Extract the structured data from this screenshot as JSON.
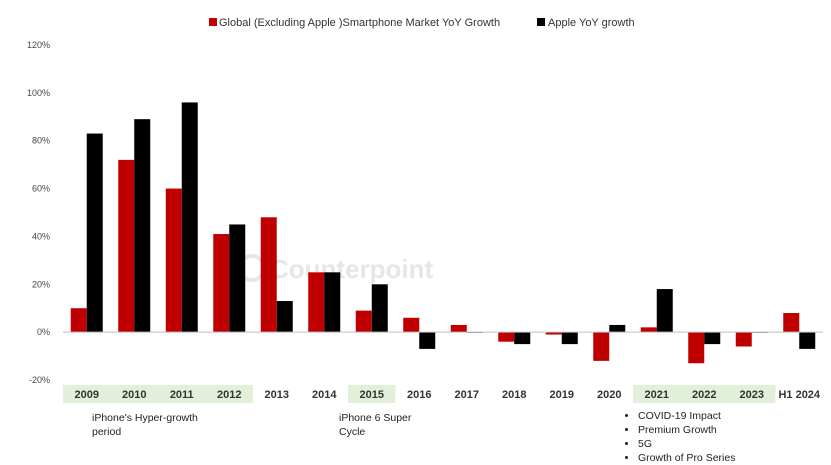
{
  "chart_data": {
    "type": "bar",
    "categories": [
      "2009",
      "2010",
      "2011",
      "2012",
      "2013",
      "2014",
      "2015",
      "2016",
      "2017",
      "2018",
      "2019",
      "2020",
      "2021",
      "2022",
      "2023",
      "H1 2024"
    ],
    "highlighted_categories": [
      "2009",
      "2010",
      "2011",
      "2012",
      "2015",
      "2021",
      "2022",
      "2023"
    ],
    "series": [
      {
        "name": "Global (Excluding Apple )Smartphone Market YoY Growth",
        "color": "#c00000",
        "values": [
          10,
          72,
          60,
          41,
          48,
          25,
          9,
          6,
          3,
          -4,
          -1,
          -12,
          2,
          -13,
          -6,
          8
        ]
      },
      {
        "name": "Apple YoY growth",
        "color": "#000000",
        "values": [
          83,
          89,
          96,
          45,
          13,
          25,
          20,
          -7,
          0,
          -5,
          -5,
          3,
          18,
          -5,
          0,
          -7
        ]
      }
    ],
    "yticks": [
      "120%",
      "100%",
      "80%",
      "60%",
      "40%",
      "20%",
      "0%",
      "-20%"
    ],
    "ylim": [
      -20,
      120
    ],
    "legend": "top-center",
    "grid": false,
    "annotations": [
      {
        "text": "iPhone's Hyper-growth period"
      },
      {
        "text": "iPhone 6 Super Cycle"
      },
      {
        "items": [
          "COVID-19 Impact",
          "Premium Growth",
          "5G",
          "Growth of Pro Series"
        ]
      }
    ],
    "watermark": "Counterpoint"
  }
}
